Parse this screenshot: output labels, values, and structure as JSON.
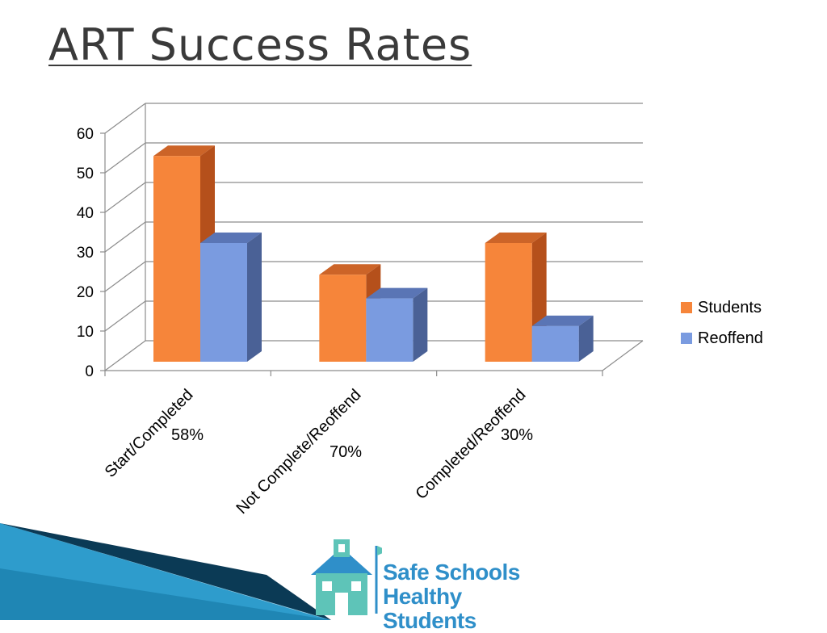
{
  "slide": {
    "title": "ART Success Rates"
  },
  "chart_data": {
    "type": "bar",
    "categories": [
      "Start/Completed",
      "Not Complete/Reoffend",
      "Completed/Reoffend"
    ],
    "category_annotations": [
      "58%",
      "70%",
      "30%"
    ],
    "series": [
      {
        "name": "Students",
        "values": [
          52,
          22,
          30
        ],
        "color": "#f6853a",
        "side_color": "#b5501b",
        "top_color": "#cc6428"
      },
      {
        "name": "Reoffend",
        "values": [
          30,
          16,
          9
        ],
        "color": "#7a9be0",
        "side_color": "#4a6196",
        "top_color": "#5a75b5"
      }
    ],
    "ylim": [
      0,
      60
    ],
    "yticks": [
      0,
      10,
      20,
      30,
      40,
      50,
      60
    ],
    "grid": true,
    "three_d": true,
    "legend_position": "right"
  },
  "logo": {
    "line1": "Safe Schools",
    "line2": "Healthy Students",
    "colors": {
      "text": "#2f8fc9",
      "house": "#5ec4b8",
      "roof": "#2f8fc9"
    }
  },
  "theme": {
    "title_color": "#3a3a3a",
    "wedge_dark": "#0b5e86",
    "wedge_light": "#5fb7dd"
  }
}
